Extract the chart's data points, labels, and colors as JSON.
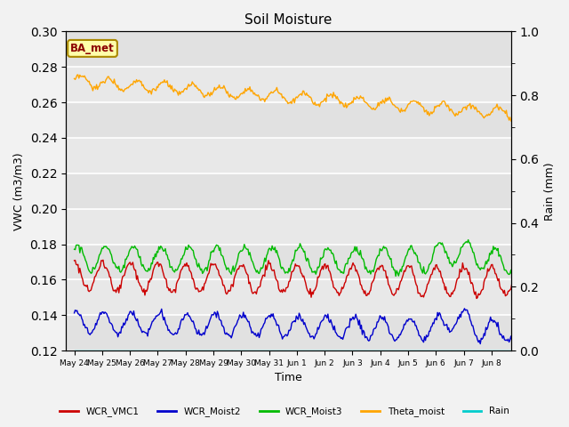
{
  "title": "Soil Moisture",
  "xlabel": "Time",
  "ylabel_left": "VWC (m3/m3)",
  "ylabel_right": "Rain (mm)",
  "ylim_left": [
    0.12,
    0.3
  ],
  "ylim_right": [
    0.0,
    1.0
  ],
  "yticks_left": [
    0.12,
    0.14,
    0.16,
    0.18,
    0.2,
    0.22,
    0.24,
    0.26,
    0.28,
    0.3
  ],
  "yticks_right": [
    0.0,
    0.2,
    0.4,
    0.6,
    0.8,
    1.0
  ],
  "annotation_text": "BA_met",
  "annotation_color": "#8B0000",
  "annotation_bg": "#FFFFAA",
  "annotation_border": "#AA8800",
  "colors": {
    "WCR_VMC1": "#CC0000",
    "WCR_Moist2": "#0000CC",
    "WCR_Moist3": "#00BB00",
    "Theta_moist": "#FFA500",
    "Rain": "#00CCCC"
  },
  "n_points": 480,
  "background_color": "#E8E8E8",
  "fig_bg": "#F2F2F2",
  "grid_color": "#FFFFFF",
  "tick_labels": [
    "May 24",
    "May 25",
    "May 26",
    "May 27",
    "May 28",
    "May 29",
    "May 30",
    "May 31",
    "Jun 1",
    "Jun 2",
    "Jun 3",
    "Jun 4",
    "Jun 5",
    "Jun 6",
    "Jun 7",
    "Jun 8"
  ],
  "linewidth": 1.0
}
